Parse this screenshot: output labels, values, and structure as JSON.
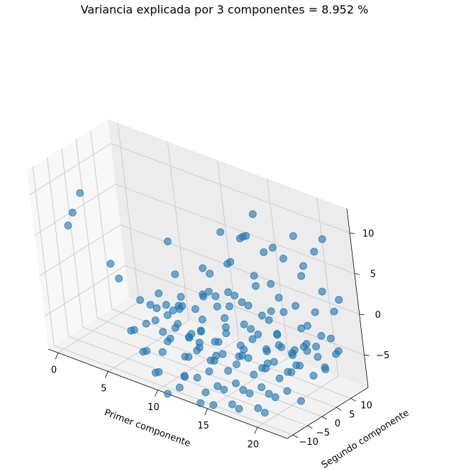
{
  "chart_data": {
    "type": "scatter3d",
    "title": "Variancia explicada por 3 componentes = 8.952 %",
    "xlabel": "Primer componente",
    "ylabel": "Segundo componente",
    "zlabel": "",
    "xlim": [
      -1,
      23
    ],
    "ylim": [
      -12,
      16
    ],
    "zlim": [
      -9,
      13
    ],
    "xticks": [
      0,
      5,
      10,
      15,
      20
    ],
    "yticks": [
      -10,
      -5,
      0,
      5,
      10
    ],
    "zticks": [
      -5,
      0,
      5,
      10
    ],
    "grid": true,
    "marker_color": "#1f77b4",
    "points": [
      [
        2,
        -5,
        10
      ],
      [
        0,
        -2,
        6
      ],
      [
        4,
        -4,
        2
      ],
      [
        6,
        -8,
        2
      ],
      [
        1,
        -7,
        6
      ],
      [
        8,
        3,
        5
      ],
      [
        10,
        -2,
        3
      ],
      [
        11,
        -4,
        0
      ],
      [
        13,
        5,
        8
      ],
      [
        14,
        8,
        7
      ],
      [
        14,
        9,
        7
      ],
      [
        15,
        7,
        8
      ],
      [
        15,
        10,
        10
      ],
      [
        16,
        9,
        6
      ],
      [
        17,
        9,
        7
      ],
      [
        17,
        12,
        5
      ],
      [
        18,
        13,
        8
      ],
      [
        19,
        12,
        5
      ],
      [
        19,
        11,
        4
      ],
      [
        20,
        13,
        7
      ],
      [
        21,
        13,
        9
      ],
      [
        12,
        1,
        4
      ],
      [
        13,
        0,
        4
      ],
      [
        14,
        4,
        5
      ],
      [
        14,
        3,
        5
      ],
      [
        16,
        5,
        4
      ],
      [
        17,
        7,
        3
      ],
      [
        18,
        3,
        1
      ],
      [
        18,
        7,
        0
      ],
      [
        19,
        8,
        1
      ],
      [
        20,
        8,
        -1
      ],
      [
        20,
        11,
        0
      ],
      [
        21,
        11,
        3
      ],
      [
        22,
        11,
        1
      ],
      [
        22,
        13,
        2
      ],
      [
        8,
        -5,
        -1
      ],
      [
        9,
        -3,
        -1
      ],
      [
        10,
        -4,
        -1
      ],
      [
        10,
        -1,
        0
      ],
      [
        11,
        -3,
        -4
      ],
      [
        12,
        -2,
        -3
      ],
      [
        12,
        0,
        1
      ],
      [
        13,
        -1,
        2
      ],
      [
        13,
        1,
        1
      ],
      [
        14,
        0,
        -1
      ],
      [
        14,
        2,
        0
      ],
      [
        15,
        1,
        2
      ],
      [
        15,
        3,
        -2
      ],
      [
        16,
        2,
        1
      ],
      [
        16,
        4,
        -3
      ],
      [
        17,
        3,
        0
      ],
      [
        17,
        5,
        -1
      ],
      [
        18,
        4,
        -2
      ],
      [
        18,
        6,
        2
      ],
      [
        19,
        6,
        -4
      ],
      [
        19,
        9,
        -2
      ],
      [
        20,
        7,
        -3
      ],
      [
        20,
        10,
        -4
      ],
      [
        21,
        9,
        -2
      ],
      [
        21,
        12,
        -3
      ],
      [
        22,
        10,
        -4
      ],
      [
        9,
        -7,
        -2
      ],
      [
        10,
        -6,
        -4
      ],
      [
        11,
        -7,
        -2
      ],
      [
        11,
        -5,
        -6
      ],
      [
        12,
        -6,
        -3
      ],
      [
        12,
        -4,
        -5
      ],
      [
        13,
        -5,
        -2
      ],
      [
        13,
        -3,
        -6
      ],
      [
        14,
        -4,
        -3
      ],
      [
        14,
        -2,
        -5
      ],
      [
        15,
        -3,
        -1
      ],
      [
        15,
        -1,
        -6
      ],
      [
        16,
        -2,
        -3
      ],
      [
        16,
        0,
        -5
      ],
      [
        17,
        -1,
        -2
      ],
      [
        17,
        1,
        -6
      ],
      [
        18,
        0,
        -3
      ],
      [
        18,
        2,
        -5
      ],
      [
        19,
        1,
        -1
      ],
      [
        19,
        3,
        -6
      ],
      [
        20,
        2,
        -3
      ],
      [
        20,
        4,
        -5
      ],
      [
        21,
        3,
        -2
      ],
      [
        21,
        5,
        -6
      ],
      [
        22,
        4,
        -3
      ],
      [
        22,
        6,
        -5
      ],
      [
        10,
        -9,
        -5
      ],
      [
        11,
        -10,
        -3
      ],
      [
        12,
        -9,
        -7
      ],
      [
        13,
        -10,
        -4
      ],
      [
        13,
        -8,
        -7
      ],
      [
        14,
        -9,
        -2
      ],
      [
        14,
        -7,
        -6
      ],
      [
        15,
        -8,
        -4
      ],
      [
        15,
        -6,
        -8
      ],
      [
        16,
        -7,
        -5
      ],
      [
        16,
        -5,
        -7
      ],
      [
        17,
        -6,
        -3
      ],
      [
        17,
        -4,
        -8
      ],
      [
        18,
        -5,
        -5
      ],
      [
        18,
        -3,
        -7
      ],
      [
        19,
        -4,
        -4
      ],
      [
        19,
        -2,
        -8
      ],
      [
        20,
        -3,
        -5
      ],
      [
        20,
        -1,
        -7
      ],
      [
        21,
        -2,
        -4
      ],
      [
        21,
        0,
        -8
      ],
      [
        12,
        -11,
        -8
      ],
      [
        13,
        -12,
        -6
      ],
      [
        14,
        -11,
        -9
      ],
      [
        15,
        -12,
        -7
      ],
      [
        15,
        -10,
        -9
      ],
      [
        16,
        -11,
        -6
      ],
      [
        17,
        -10,
        -8
      ],
      [
        17,
        -8,
        -9
      ],
      [
        18,
        -9,
        -6
      ],
      [
        19,
        -8,
        -8
      ],
      [
        19,
        -6,
        -9
      ],
      [
        20,
        -7,
        -6
      ],
      [
        6,
        -2,
        -2
      ],
      [
        7,
        -4,
        -4
      ],
      [
        7,
        0,
        -3
      ],
      [
        8,
        -2,
        -5
      ],
      [
        9,
        0,
        -4
      ],
      [
        9,
        1,
        -2
      ],
      [
        10,
        1,
        -5
      ],
      [
        11,
        2,
        -3
      ],
      [
        11,
        0,
        -6
      ],
      [
        12,
        2,
        -7
      ],
      [
        13,
        3,
        -4
      ],
      [
        14,
        5,
        -6
      ],
      [
        15,
        5,
        -3
      ],
      [
        16,
        6,
        -7
      ],
      [
        17,
        8,
        -5
      ],
      [
        18,
        9,
        -7
      ],
      [
        19,
        10,
        -5
      ],
      [
        20,
        12,
        -7
      ],
      [
        21,
        14,
        -5
      ],
      [
        5,
        -3,
        -6
      ],
      [
        6,
        -5,
        -5
      ],
      [
        7,
        -6,
        -7
      ],
      [
        8,
        -8,
        -6
      ],
      [
        9,
        -9,
        -8
      ],
      [
        10,
        -11,
        -7
      ],
      [
        11,
        -12,
        -9
      ],
      [
        13,
        -6,
        1
      ],
      [
        14,
        -6,
        3
      ],
      [
        15,
        -5,
        2
      ],
      [
        16,
        -4,
        4
      ],
      [
        17,
        -3,
        3
      ],
      [
        18,
        -1,
        5
      ],
      [
        12,
        -8,
        1
      ],
      [
        11,
        -9,
        0
      ],
      [
        10,
        -8,
        2
      ],
      [
        16,
        -9,
        -1
      ],
      [
        18,
        -8,
        -2
      ],
      [
        20,
        -6,
        -1
      ],
      [
        21,
        -5,
        0
      ],
      [
        22,
        -4,
        -1
      ]
    ]
  }
}
